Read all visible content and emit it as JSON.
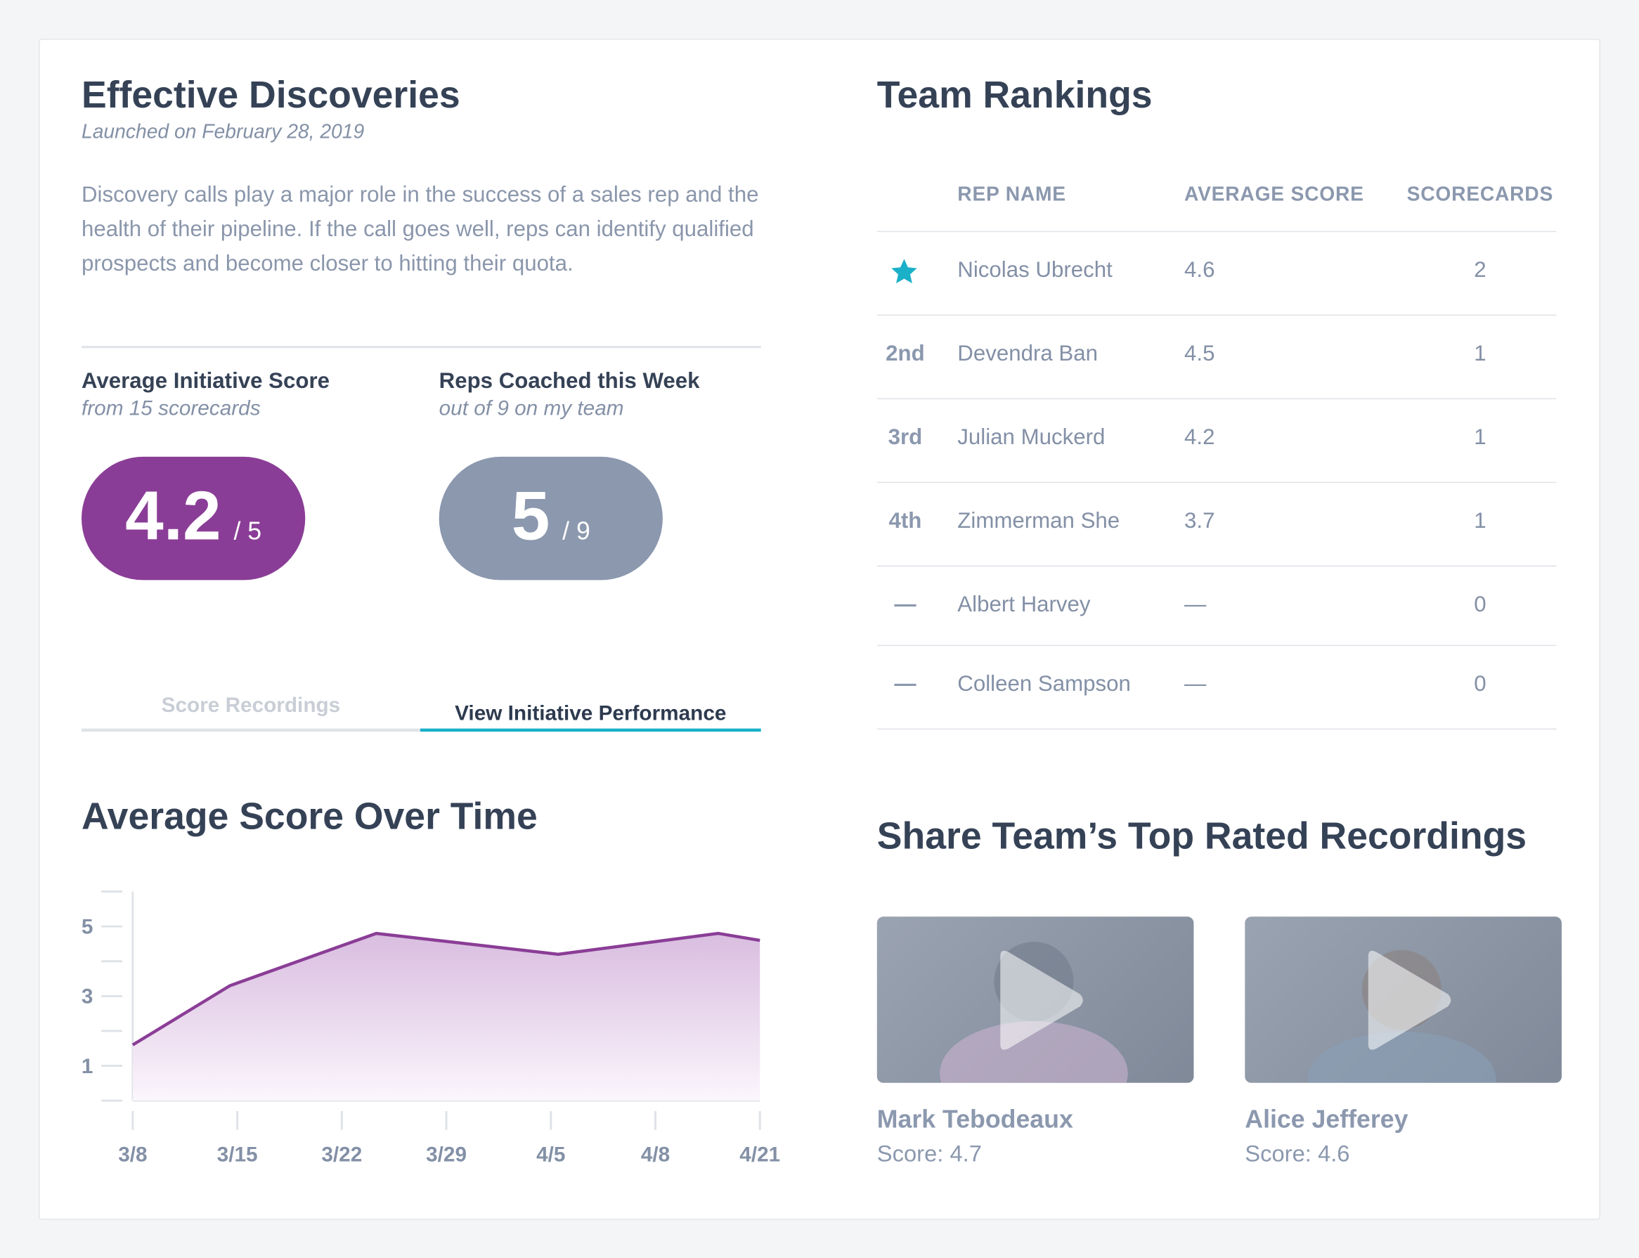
{
  "initiative": {
    "title": "Effective Discoveries",
    "launched": "Launched on February 28, 2019",
    "description": "Discovery calls play a major role in the success of a sales rep and the health of their pipeline. If the call goes well, reps can identify qualified prospects and become closer to hitting their quota."
  },
  "stats": [
    {
      "label": "Average Initiative Score",
      "sublabel": "from 15 scorecards",
      "value": 4.2,
      "scale_label": "/ 5"
    },
    {
      "label": "Reps Coached this Week",
      "sublabel": "out of 9 on my team",
      "value": 5,
      "scale_label": "/ 9"
    }
  ],
  "tabs": [
    "Score Recordings",
    "View Initiative Performance"
  ],
  "chart_data": {
    "type": "area",
    "title": "Average Score Over Time",
    "x": [
      0,
      0.93,
      2.33,
      4.07,
      5.6,
      6
    ],
    "values": [
      1.6,
      3.3,
      4.8,
      4.2,
      4.8,
      4.6
    ],
    "xlim": [
      0,
      6
    ],
    "xticks": [
      {
        "value": 0,
        "label": "3/8"
      },
      {
        "value": 1,
        "label": "3/15"
      },
      {
        "value": 2,
        "label": "3/22"
      },
      {
        "value": 3,
        "label": "3/29"
      },
      {
        "value": 4,
        "label": "4/5"
      },
      {
        "value": 5,
        "label": "4/8"
      },
      {
        "value": 6,
        "label": "4/21"
      }
    ],
    "ylim": [
      0,
      6
    ],
    "yticks": [
      1,
      3,
      5
    ],
    "minor_yticks": [
      0,
      2,
      4,
      6
    ],
    "color": "#8a3d96"
  },
  "rankings": {
    "title": "Team Rankings",
    "columns": [
      "REP NAME",
      "AVERAGE SCORE",
      "SCORECARDS"
    ],
    "rows": [
      [
        null,
        "Nicolas Ubrecht",
        "4.6",
        2
      ],
      [
        "2nd",
        "Devendra Ban",
        "4.5",
        1
      ],
      [
        "3rd",
        "Julian Muckerd",
        "4.2",
        1
      ],
      [
        "4th",
        "Zimmerman She",
        "3.7",
        1
      ],
      [
        "—",
        "Albert Harvey",
        "—",
        0
      ],
      [
        "—",
        "Colleen Sampson",
        "—",
        0
      ]
    ]
  },
  "sharing": {
    "title": "Share Team’s Top Rated Recordings",
    "score_label": "Score:",
    "recordings": [
      {
        "name": "Mark Tebodeaux",
        "score": 4.7
      },
      {
        "name": "Alice Jefferey",
        "score": 4.6
      }
    ]
  }
}
